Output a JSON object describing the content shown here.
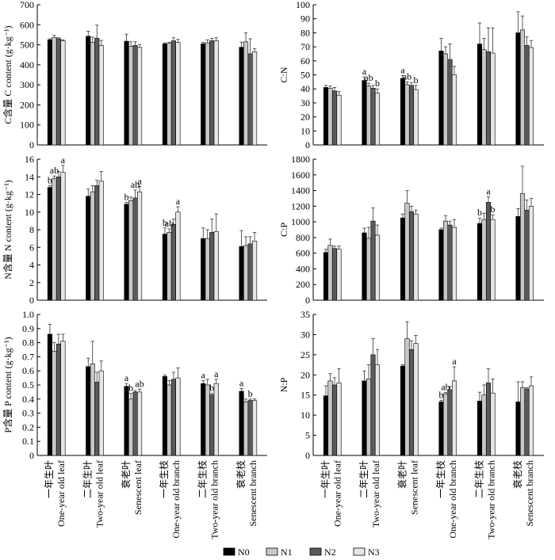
{
  "legend": {
    "items": [
      {
        "label": "N0",
        "color": "#000000"
      },
      {
        "label": "N1",
        "color": "#c8c8c8"
      },
      {
        "label": "N2",
        "color": "#5a5a5a"
      },
      {
        "label": "N3",
        "color": "#e6e6e6"
      }
    ],
    "placement": "bottom-center"
  },
  "x_categories": [
    {
      "zh": "一年生叶",
      "en": "One-year old leaf"
    },
    {
      "zh": "二年生叶",
      "en": "Two-year old leaf"
    },
    {
      "zh": "衰老叶",
      "en": "Senescent leaf"
    },
    {
      "zh": "一年生枝",
      "en": "One-year old branch"
    },
    {
      "zh": "二年生枝",
      "en": "Two-year old branch"
    },
    {
      "zh": "衰老枝",
      "en": "Senescent branch"
    }
  ],
  "chart_data": [
    {
      "type": "bar",
      "panel": "C content",
      "ylabel": "C含量 C content (g·kg⁻¹)",
      "ylim": [
        0,
        700
      ],
      "yticks": [
        "0",
        "100",
        "200",
        "300",
        "400",
        "500",
        "600",
        "700"
      ],
      "series": [
        {
          "name": "N0",
          "values": [
            525,
            543,
            518,
            505,
            505,
            488
          ],
          "errors": [
            5,
            25,
            35,
            5,
            8,
            25
          ]
        },
        {
          "name": "N1",
          "values": [
            537,
            513,
            493,
            507,
            510,
            515
          ],
          "errors": [
            10,
            25,
            22,
            5,
            15,
            45
          ]
        },
        {
          "name": "N2",
          "values": [
            530,
            533,
            497,
            520,
            520,
            455
          ],
          "errors": [
            5,
            65,
            18,
            15,
            12,
            75
          ]
        },
        {
          "name": "N3",
          "values": [
            520,
            497,
            487,
            512,
            520,
            465
          ],
          "errors": [
            5,
            25,
            15,
            15,
            15,
            15
          ]
        }
      ],
      "annotations": []
    },
    {
      "type": "bar",
      "panel": "C:N",
      "ylabel": "C:N",
      "ylim": [
        0,
        100
      ],
      "yticks": [
        "0",
        "10",
        "20",
        "30",
        "40",
        "50",
        "60",
        "70",
        "80",
        "90",
        "100"
      ],
      "series": [
        {
          "name": "N0",
          "values": [
            41,
            46,
            47.5,
            67,
            72,
            80
          ],
          "errors": [
            1.5,
            2.5,
            2,
            9,
            15,
            15
          ]
        },
        {
          "name": "N1",
          "values": [
            40.5,
            42,
            43,
            65,
            68,
            82
          ],
          "errors": [
            1.5,
            2,
            2,
            5,
            8,
            10
          ]
        },
        {
          "name": "N2",
          "values": [
            38.5,
            40.5,
            42.5,
            61,
            66.5,
            71
          ],
          "errors": [
            2.5,
            2,
            2,
            11,
            17,
            6
          ]
        },
        {
          "name": "N3",
          "values": [
            35.5,
            37,
            39.5,
            50,
            65.5,
            69.5
          ],
          "errors": [
            2.5,
            3,
            3,
            6,
            18,
            5
          ]
        }
      ],
      "annotations": [
        {
          "group": 1,
          "series": 0,
          "text": "a"
        },
        {
          "group": 1,
          "series": 1,
          "text": "ab"
        },
        {
          "group": 1,
          "series": 3,
          "text": "b"
        },
        {
          "group": 2,
          "series": 0,
          "text": "a"
        },
        {
          "group": 2,
          "series": 1,
          "text": "ab"
        },
        {
          "group": 2,
          "series": 3,
          "text": "b"
        }
      ]
    },
    {
      "type": "bar",
      "panel": "N content",
      "ylabel": "N含量 N content (g·kg⁻¹)",
      "ylim": [
        0,
        16
      ],
      "yticks": [
        "0",
        "2",
        "4",
        "6",
        "8",
        "10",
        "12",
        "14",
        "16"
      ],
      "series": [
        {
          "name": "N0",
          "values": [
            12.8,
            11.8,
            10.9,
            7.5,
            7.0,
            6.1
          ],
          "errors": [
            0.2,
            0.8,
            0.2,
            0.7,
            1.2,
            1.8
          ]
        },
        {
          "name": "N1",
          "values": [
            13.8,
            12.3,
            11.3,
            7.7,
            7.0,
            6.2
          ],
          "errors": [
            0.3,
            0.7,
            0.4,
            0.4,
            1.0,
            1.0
          ]
        },
        {
          "name": "N2",
          "values": [
            14.0,
            13.0,
            11.6,
            8.6,
            7.7,
            6.4
          ],
          "errors": [
            0.6,
            0.6,
            0.9,
            0.6,
            1.5,
            0.8
          ]
        },
        {
          "name": "N3",
          "values": [
            14.5,
            13.5,
            12.3,
            10.0,
            7.8,
            6.7
          ],
          "errors": [
            0.8,
            1.1,
            0.6,
            0.6,
            2.0,
            1.0
          ]
        }
      ],
      "annotations": [
        {
          "group": 0,
          "series": 0,
          "text": "b"
        },
        {
          "group": 0,
          "series": 1,
          "text": "ab"
        },
        {
          "group": 0,
          "series": 3,
          "text": "a"
        },
        {
          "group": 2,
          "series": 0,
          "text": "b"
        },
        {
          "group": 2,
          "series": 2,
          "text": "ab"
        },
        {
          "group": 2,
          "series": 3,
          "text": "a"
        },
        {
          "group": 3,
          "series": 0,
          "text": "b"
        },
        {
          "group": 3,
          "series": 1,
          "text": "ab"
        },
        {
          "group": 3,
          "series": 3,
          "text": "a"
        }
      ]
    },
    {
      "type": "bar",
      "panel": "C:P",
      "ylabel": "C:P",
      "ylim": [
        0,
        1800
      ],
      "yticks": [
        "0",
        "200",
        "400",
        "600",
        "800",
        "1000",
        "1200",
        "1400",
        "1600",
        "1800"
      ],
      "series": [
        {
          "name": "N0",
          "values": [
            610,
            860,
            1050,
            900,
            980,
            1070
          ],
          "errors": [
            40,
            60,
            50,
            20,
            70,
            100
          ]
        },
        {
          "name": "N1",
          "values": [
            700,
            790,
            1240,
            1010,
            1030,
            1360
          ],
          "errors": [
            80,
            140,
            160,
            70,
            80,
            350
          ]
        },
        {
          "name": "N2",
          "values": [
            660,
            1010,
            1130,
            960,
            1250,
            1150
          ],
          "errors": [
            30,
            170,
            70,
            50,
            70,
            130
          ]
        },
        {
          "name": "N3",
          "values": [
            650,
            830,
            1100,
            930,
            1030,
            1200
          ],
          "errors": [
            40,
            130,
            50,
            100,
            60,
            100
          ]
        }
      ],
      "annotations": [
        {
          "group": 4,
          "series": 0,
          "text": "b"
        },
        {
          "group": 4,
          "series": 2,
          "text": "a"
        },
        {
          "group": 4,
          "series": 3,
          "text": "b"
        }
      ]
    },
    {
      "type": "bar",
      "panel": "P content",
      "ylabel": "P含量 P content (g·kg⁻¹)",
      "ylim": [
        0,
        1
      ],
      "yticks": [
        "0",
        "0.1",
        "0.2",
        "0.3",
        "0.4",
        "0.5",
        "0.6",
        "0.7",
        "0.8",
        "0.9",
        "1.0"
      ],
      "series": [
        {
          "name": "N0",
          "values": [
            0.86,
            0.63,
            0.49,
            0.56,
            0.51,
            0.455
          ],
          "errors": [
            0.07,
            0.06,
            0.02,
            0.01,
            0.02,
            0.02
          ]
        },
        {
          "name": "N1",
          "values": [
            0.74,
            0.65,
            0.4,
            0.5,
            0.5,
            0.38
          ],
          "errors": [
            0.06,
            0.16,
            0.04,
            0.03,
            0.04,
            0.02
          ]
        },
        {
          "name": "N2",
          "values": [
            0.79,
            0.52,
            0.45,
            0.54,
            0.43,
            0.39
          ],
          "errors": [
            0.07,
            0.07,
            0.01,
            0.05,
            0.01,
            0.01
          ]
        },
        {
          "name": "N3",
          "values": [
            0.81,
            0.6,
            0.45,
            0.55,
            0.51,
            0.39
          ],
          "errors": [
            0.05,
            0.07,
            0.02,
            0.07,
            0.03,
            0.01
          ]
        }
      ],
      "annotations": [
        {
          "group": 2,
          "series": 0,
          "text": "a"
        },
        {
          "group": 2,
          "series": 1,
          "text": "b"
        },
        {
          "group": 2,
          "series": 3,
          "text": "ab"
        },
        {
          "group": 4,
          "series": 0,
          "text": "a"
        },
        {
          "group": 4,
          "series": 2,
          "text": "b"
        },
        {
          "group": 4,
          "series": 3,
          "text": "a"
        },
        {
          "group": 5,
          "series": 0,
          "text": "a"
        },
        {
          "group": 5,
          "series": 2,
          "text": "b"
        }
      ]
    },
    {
      "type": "bar",
      "panel": "N:P",
      "ylabel": "N:P",
      "ylim": [
        0,
        35
      ],
      "yticks": [
        "0",
        "5",
        "10",
        "15",
        "20",
        "25",
        "30",
        "35"
      ],
      "series": [
        {
          "name": "N0",
          "values": [
            14.8,
            18.5,
            22.2,
            13.3,
            13.5,
            13.3
          ],
          "errors": [
            2.5,
            2.5,
            0.3,
            0.4,
            2.2,
            5.0
          ]
        },
        {
          "name": "N1",
          "values": [
            18.5,
            19.0,
            29.0,
            15.3,
            15.0,
            16.8
          ],
          "errors": [
            1.8,
            3.5,
            4.2,
            0.3,
            2.5,
            1.5
          ]
        },
        {
          "name": "N2",
          "values": [
            17.5,
            25.0,
            26.3,
            16.3,
            18.0,
            16.5
          ],
          "errors": [
            1.8,
            4.0,
            2.2,
            0.8,
            3.5,
            0.3
          ]
        },
        {
          "name": "N3",
          "values": [
            18.0,
            22.5,
            27.8,
            18.5,
            15.5,
            17.3
          ],
          "errors": [
            3.5,
            3.8,
            2.0,
            3.5,
            3.5,
            2.2
          ]
        }
      ],
      "annotations": [
        {
          "group": 3,
          "series": 0,
          "text": "b"
        },
        {
          "group": 3,
          "series": 1,
          "text": "ab"
        },
        {
          "group": 3,
          "series": 3,
          "text": "a"
        }
      ]
    }
  ]
}
